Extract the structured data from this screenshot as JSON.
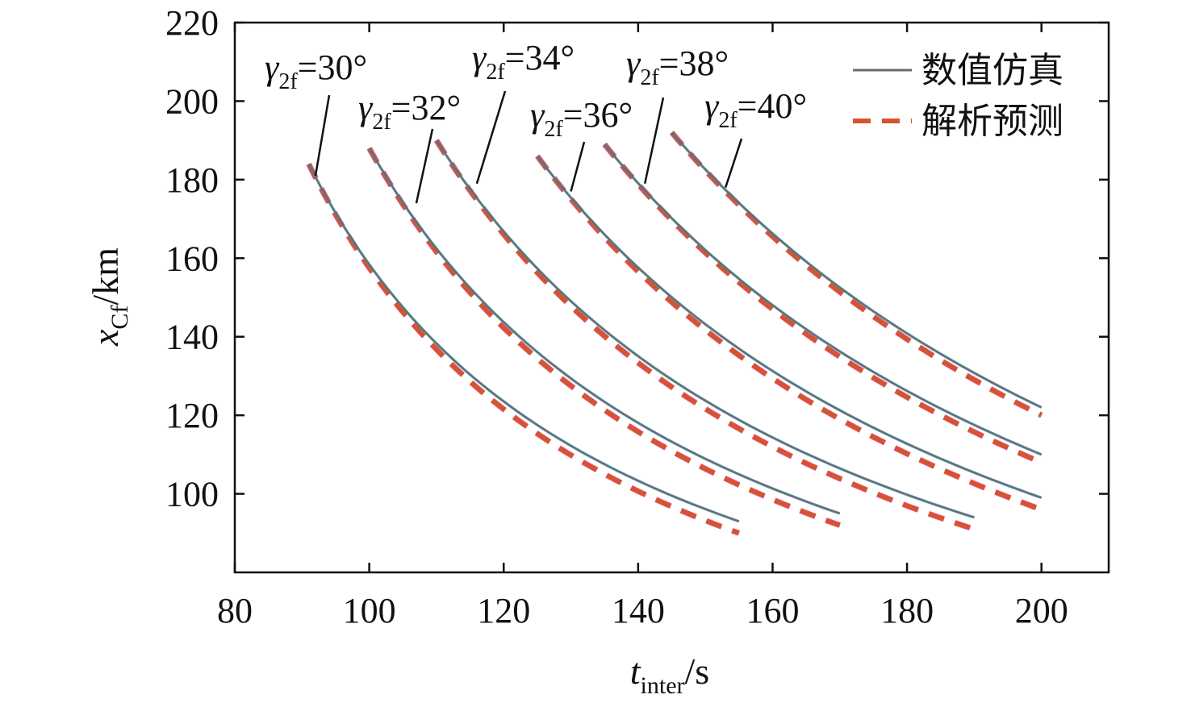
{
  "chart_data": {
    "type": "line",
    "xlabel": {
      "main": "t",
      "sub": "inter",
      "unit": "/s"
    },
    "ylabel": {
      "main": "x",
      "sub": "Cf",
      "unit": "/km"
    },
    "xlim": [
      80,
      210
    ],
    "ylim": [
      80,
      220
    ],
    "xticks": [
      80,
      100,
      120,
      140,
      160,
      180,
      200
    ],
    "yticks": [
      100,
      120,
      140,
      160,
      180,
      200,
      220
    ],
    "legend": {
      "position": "top-right",
      "items": [
        {
          "label": "数值仿真",
          "style": "solid",
          "color": "#6b6b6b"
        },
        {
          "label": "解析预测",
          "style": "dashed",
          "color": "#d4552b"
        }
      ]
    },
    "annotation_prefix": "γ",
    "annotation_sub": "2f",
    "series": [
      {
        "name": "=30°",
        "x_start": 91,
        "x_end": 155,
        "sim": [
          184,
          93
        ],
        "ana": [
          184,
          90
        ],
        "label_x": 92,
        "label_y": 181
      },
      {
        "name": "=32°",
        "x_start": 100,
        "x_end": 170,
        "sim": [
          188,
          95
        ],
        "ana": [
          188,
          92
        ],
        "label_x": 107,
        "label_y": 174
      },
      {
        "name": "=34°",
        "x_start": 110,
        "x_end": 190,
        "sim": [
          190,
          94
        ],
        "ana": [
          190,
          91
        ],
        "label_x": 116,
        "label_y": 179
      },
      {
        "name": "=36°",
        "x_start": 125,
        "x_end": 200,
        "sim": [
          186,
          99
        ],
        "ana": [
          186,
          96
        ],
        "label_x": 130,
        "label_y": 177
      },
      {
        "name": "=38°",
        "x_start": 135,
        "x_end": 200,
        "sim": [
          189,
          110
        ],
        "ana": [
          189,
          108
        ],
        "label_x": 141,
        "label_y": 179
      },
      {
        "name": "=40°",
        "x_start": 145,
        "x_end": 200,
        "sim": [
          192,
          122
        ],
        "ana": [
          192,
          120
        ],
        "label_x": 153,
        "label_y": 178
      }
    ],
    "colors": {
      "sim_line": "#6b6b6b",
      "sim_highlight": "#2a9fc4",
      "ana_line": "#d4552b",
      "ana_highlight": "#e0356e",
      "axis": "#111111"
    }
  }
}
